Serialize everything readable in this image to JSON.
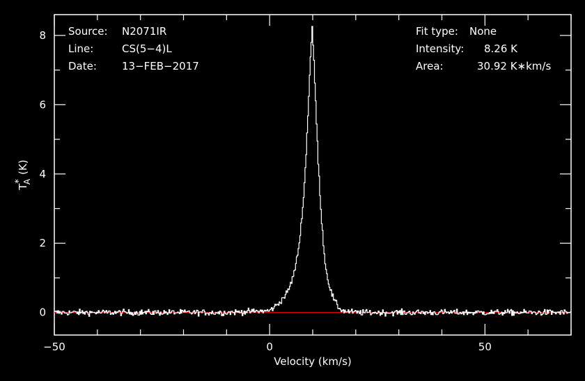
{
  "chart_data": {
    "type": "line",
    "xlabel": "Velocity (km/s)",
    "ylabel_main": "T",
    "ylabel_star": "*",
    "ylabel_sub": "A",
    "ylabel_unit": "(K)",
    "xlim": [
      -50,
      70
    ],
    "ylim": [
      -0.65,
      8.6
    ],
    "x_ticks": [
      {
        "value": -50,
        "label": "−50"
      },
      {
        "value": 0,
        "label": "0"
      },
      {
        "value": 50,
        "label": "50"
      }
    ],
    "y_ticks": [
      {
        "value": 0,
        "label": "0"
      },
      {
        "value": 2,
        "label": "2"
      },
      {
        "value": 4,
        "label": "4"
      },
      {
        "value": 6,
        "label": "6"
      },
      {
        "value": 8,
        "label": "8"
      }
    ],
    "baseline": 0,
    "line_color": "#ffffff",
    "baseline_color": "#ff0000",
    "grid": false,
    "profile": {
      "peak_velocity": 9.9,
      "peak_intensity": 8.26,
      "noise_rms": 0.05,
      "channel_width": 0.2
    },
    "series": [
      {
        "x": [
          -50,
          -40,
          -30,
          -20,
          -10,
          0,
          2,
          4,
          5,
          6,
          7,
          7.5,
          8,
          8.5,
          9,
          9.5,
          9.9,
          10.3,
          10.8,
          11.3,
          12,
          12.5,
          13,
          14,
          15,
          16,
          17,
          20,
          30,
          40,
          50,
          60,
          70
        ],
        "y": [
          0,
          0,
          0,
          0,
          0,
          0.05,
          0.25,
          0.55,
          0.85,
          1.3,
          2.1,
          2.8,
          3.5,
          4.6,
          6.0,
          7.4,
          8.26,
          7.2,
          5.8,
          4.3,
          2.8,
          2.0,
          1.3,
          0.7,
          0.35,
          0.15,
          0.05,
          0,
          0,
          0,
          0,
          0,
          0
        ]
      }
    ]
  },
  "annotations": {
    "source_label": "Source:",
    "source_value": "N2071IR",
    "line_label": "Line:",
    "line_value": "CS(5−4)L",
    "date_label": "Date:",
    "date_value": "13−FEB−2017",
    "fit_label": "Fit type:",
    "fit_value": "None",
    "intensity_label": "Intensity:",
    "intensity_value": "8.26 K",
    "area_label": "Area:",
    "area_value": "30.92 K∗km/s"
  }
}
